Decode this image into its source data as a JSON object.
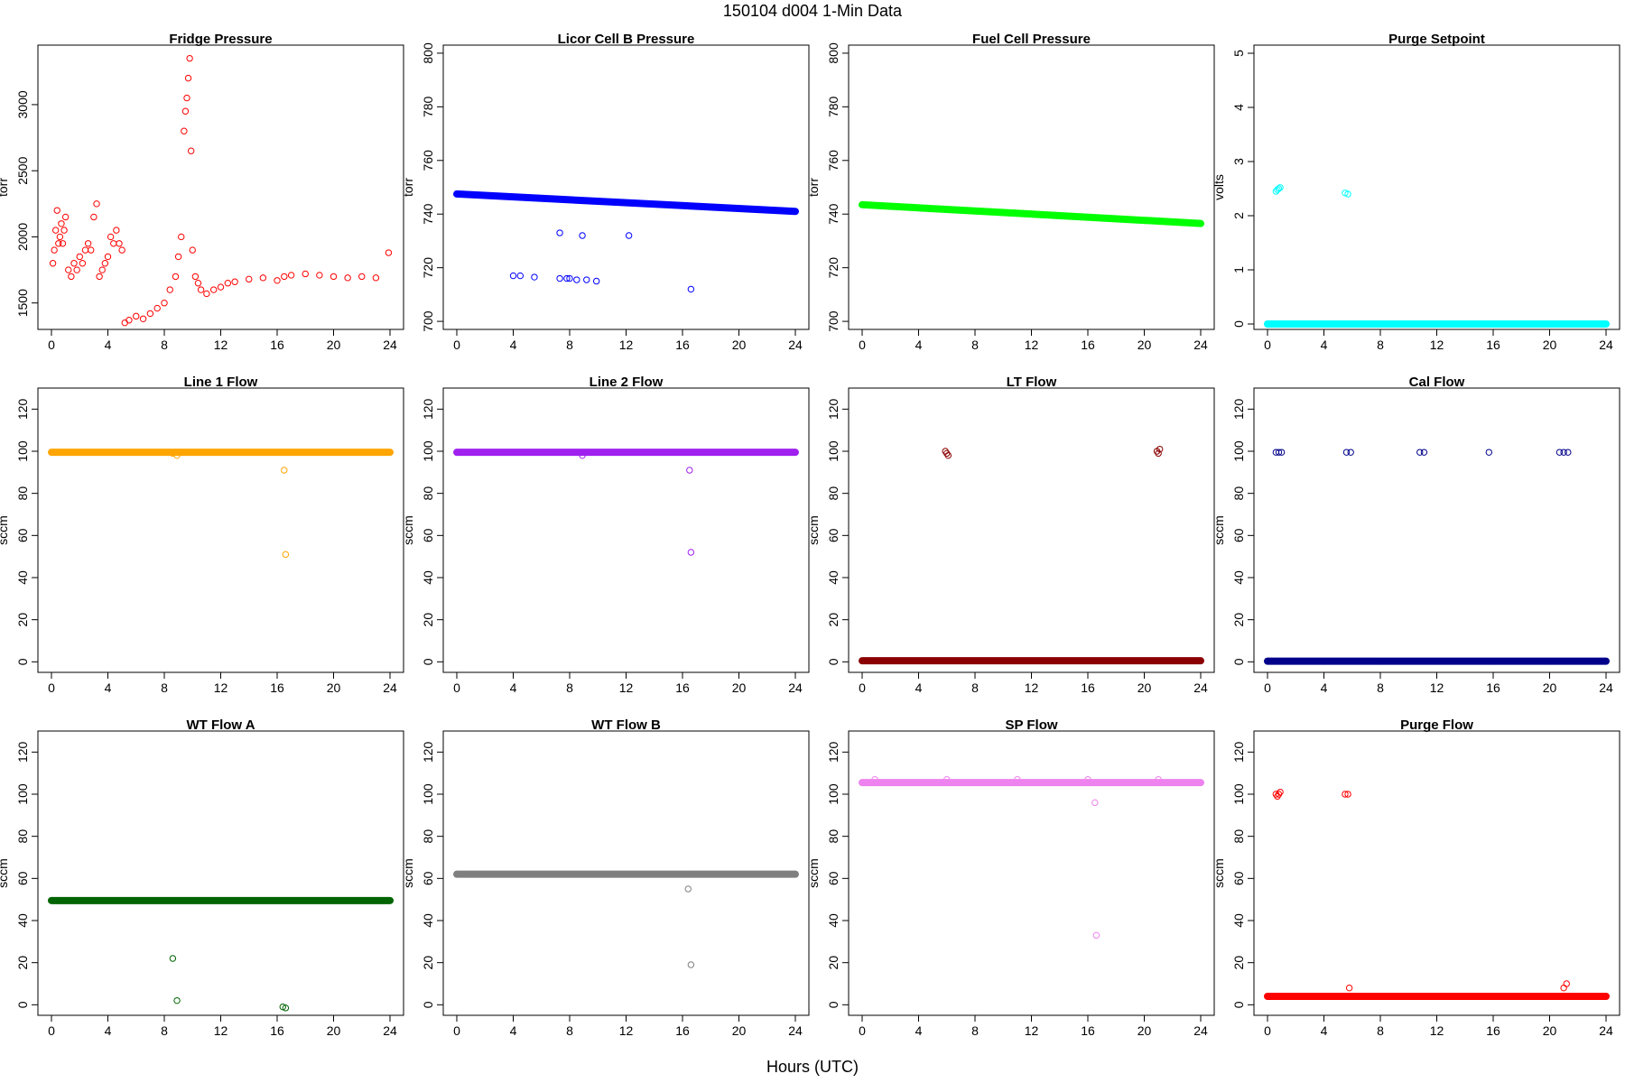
{
  "figure": {
    "suptitle": "150104   d004   1-Min Data",
    "xlabel": "Hours (UTC)"
  },
  "chart_data": [
    {
      "type": "scatter",
      "title": "Fridge Pressure",
      "ylabel": "torr",
      "color": "#ff0000",
      "xlim": [
        0,
        24
      ],
      "ylim": [
        1300,
        3450
      ],
      "yticks": [
        1500,
        2000,
        2500,
        3000
      ],
      "xticks": [
        0,
        4,
        8,
        12,
        16,
        20,
        24
      ],
      "points": [
        [
          0.1,
          1800
        ],
        [
          0.2,
          1900
        ],
        [
          0.3,
          2050
        ],
        [
          0.4,
          2200
        ],
        [
          0.5,
          1950
        ],
        [
          0.6,
          2000
        ],
        [
          0.7,
          2100
        ],
        [
          0.8,
          1950
        ],
        [
          0.9,
          2050
        ],
        [
          1.0,
          2150
        ],
        [
          1.2,
          1750
        ],
        [
          1.4,
          1700
        ],
        [
          1.6,
          1800
        ],
        [
          1.8,
          1750
        ],
        [
          2.0,
          1850
        ],
        [
          2.2,
          1800
        ],
        [
          2.4,
          1900
        ],
        [
          2.6,
          1950
        ],
        [
          2.8,
          1900
        ],
        [
          3.0,
          2150
        ],
        [
          3.2,
          2250
        ],
        [
          3.4,
          1700
        ],
        [
          3.6,
          1750
        ],
        [
          3.8,
          1800
        ],
        [
          4.0,
          1850
        ],
        [
          4.2,
          2000
        ],
        [
          4.4,
          1950
        ],
        [
          4.6,
          2050
        ],
        [
          4.8,
          1950
        ],
        [
          5.0,
          1900
        ],
        [
          5.2,
          1350
        ],
        [
          5.5,
          1370
        ],
        [
          6.0,
          1400
        ],
        [
          6.5,
          1380
        ],
        [
          7.0,
          1420
        ],
        [
          7.5,
          1460
        ],
        [
          8.0,
          1500
        ],
        [
          8.4,
          1600
        ],
        [
          8.8,
          1700
        ],
        [
          9.0,
          1850
        ],
        [
          9.2,
          2000
        ],
        [
          9.4,
          2800
        ],
        [
          9.5,
          2950
        ],
        [
          9.6,
          3050
        ],
        [
          9.7,
          3200
        ],
        [
          9.8,
          3350
        ],
        [
          9.9,
          2650
        ],
        [
          10.0,
          1900
        ],
        [
          10.2,
          1700
        ],
        [
          10.4,
          1650
        ],
        [
          10.6,
          1600
        ],
        [
          11.0,
          1570
        ],
        [
          11.5,
          1600
        ],
        [
          12.0,
          1620
        ],
        [
          12.5,
          1650
        ],
        [
          13.0,
          1660
        ],
        [
          14.0,
          1680
        ],
        [
          15.0,
          1690
        ],
        [
          16.0,
          1670
        ],
        [
          16.5,
          1700
        ],
        [
          17.0,
          1710
        ],
        [
          18.0,
          1720
        ],
        [
          19.0,
          1710
        ],
        [
          20.0,
          1700
        ],
        [
          21.0,
          1690
        ],
        [
          22.0,
          1700
        ],
        [
          23.0,
          1690
        ],
        [
          23.9,
          1880
        ]
      ]
    },
    {
      "type": "scatter",
      "title": "Licor Cell B Pressure",
      "ylabel": "torr",
      "color": "#0000ff",
      "xlim": [
        0,
        24
      ],
      "ylim": [
        697,
        803
      ],
      "yticks": [
        700,
        720,
        740,
        760,
        780,
        800
      ],
      "xticks": [
        0,
        4,
        8,
        12,
        16,
        20,
        24
      ],
      "line": [
        [
          0,
          747.5
        ],
        [
          24,
          741
        ]
      ],
      "points": [
        [
          4.0,
          717
        ],
        [
          4.5,
          717
        ],
        [
          5.5,
          716.5
        ],
        [
          7.3,
          733
        ],
        [
          7.3,
          716
        ],
        [
          7.8,
          716
        ],
        [
          8.0,
          716
        ],
        [
          8.5,
          715.5
        ],
        [
          8.9,
          732
        ],
        [
          9.2,
          715.5
        ],
        [
          9.9,
          715
        ],
        [
          12.2,
          732
        ],
        [
          16.6,
          712
        ]
      ]
    },
    {
      "type": "scatter",
      "title": "Fuel Cell Pressure",
      "ylabel": "torr",
      "color": "#00ff00",
      "xlim": [
        0,
        24
      ],
      "ylim": [
        697,
        803
      ],
      "yticks": [
        700,
        720,
        740,
        760,
        780,
        800
      ],
      "xticks": [
        0,
        4,
        8,
        12,
        16,
        20,
        24
      ],
      "line": [
        [
          0,
          743.5
        ],
        [
          24,
          736.5
        ]
      ],
      "points": []
    },
    {
      "type": "scatter",
      "title": "Purge Setpoint",
      "ylabel": "volts",
      "color": "#00ffff",
      "xlim": [
        0,
        24
      ],
      "ylim": [
        -0.1,
        5.15
      ],
      "yticks": [
        0,
        1,
        2,
        3,
        4,
        5
      ],
      "xticks": [
        0,
        4,
        8,
        12,
        16,
        20,
        24
      ],
      "line": [
        [
          0,
          0
        ],
        [
          24,
          0
        ]
      ],
      "points": [
        [
          0.6,
          2.45
        ],
        [
          0.7,
          2.48
        ],
        [
          0.8,
          2.5
        ],
        [
          0.9,
          2.52
        ],
        [
          5.5,
          2.42
        ],
        [
          5.7,
          2.4
        ]
      ]
    },
    {
      "type": "scatter",
      "title": "Line 1 Flow",
      "ylabel": "sccm",
      "color": "#ffa500",
      "xlim": [
        0,
        24
      ],
      "ylim": [
        -5,
        130
      ],
      "yticks": [
        0,
        20,
        40,
        60,
        80,
        100,
        120
      ],
      "xticks": [
        0,
        4,
        8,
        12,
        16,
        20,
        24
      ],
      "line": [
        [
          0,
          99.5
        ],
        [
          24,
          99.5
        ]
      ],
      "points": [
        [
          8.6,
          99
        ],
        [
          8.9,
          98
        ],
        [
          16.5,
          91
        ],
        [
          16.6,
          51
        ]
      ]
    },
    {
      "type": "scatter",
      "title": "Line 2 Flow",
      "ylabel": "sccm",
      "color": "#a020f0",
      "xlim": [
        0,
        24
      ],
      "ylim": [
        -5,
        130
      ],
      "yticks": [
        0,
        20,
        40,
        60,
        80,
        100,
        120
      ],
      "xticks": [
        0,
        4,
        8,
        12,
        16,
        20,
        24
      ],
      "line": [
        [
          0,
          99.5
        ],
        [
          24,
          99.5
        ]
      ],
      "points": [
        [
          8.9,
          98
        ],
        [
          16.5,
          91
        ],
        [
          16.6,
          52
        ]
      ]
    },
    {
      "type": "scatter",
      "title": "LT Flow",
      "ylabel": "sccm",
      "color": "#8b0000",
      "xlim": [
        0,
        24
      ],
      "ylim": [
        -5,
        130
      ],
      "yticks": [
        0,
        20,
        40,
        60,
        80,
        100,
        120
      ],
      "xticks": [
        0,
        4,
        8,
        12,
        16,
        20,
        24
      ],
      "line": [
        [
          0,
          0.5
        ],
        [
          24,
          0.5
        ]
      ],
      "points": [
        [
          5.9,
          100
        ],
        [
          6.0,
          99
        ],
        [
          6.1,
          98
        ],
        [
          20.9,
          100
        ],
        [
          21.0,
          99
        ],
        [
          21.1,
          101
        ]
      ]
    },
    {
      "type": "scatter",
      "title": "Cal Flow",
      "ylabel": "sccm",
      "color": "#00008b",
      "xlim": [
        0,
        24
      ],
      "ylim": [
        -5,
        130
      ],
      "yticks": [
        0,
        20,
        40,
        60,
        80,
        100,
        120
      ],
      "xticks": [
        0,
        4,
        8,
        12,
        16,
        20,
        24
      ],
      "line": [
        [
          0,
          0.3
        ],
        [
          24,
          0.3
        ]
      ],
      "points": [
        [
          0.6,
          99.5
        ],
        [
          0.8,
          99.5
        ],
        [
          1.0,
          99.5
        ],
        [
          5.6,
          99.5
        ],
        [
          5.9,
          99.5
        ],
        [
          10.8,
          99.5
        ],
        [
          11.1,
          99.5
        ],
        [
          15.7,
          99.5
        ],
        [
          20.7,
          99.5
        ],
        [
          21.0,
          99.5
        ],
        [
          21.3,
          99.5
        ]
      ]
    },
    {
      "type": "scatter",
      "title": "WT Flow A",
      "ylabel": "sccm",
      "color": "#006400",
      "xlim": [
        0,
        24
      ],
      "ylim": [
        -5,
        130
      ],
      "yticks": [
        0,
        20,
        40,
        60,
        80,
        100,
        120
      ],
      "xticks": [
        0,
        4,
        8,
        12,
        16,
        20,
        24
      ],
      "line": [
        [
          0,
          49.5
        ],
        [
          24,
          49.5
        ]
      ],
      "points": [
        [
          8.6,
          22
        ],
        [
          8.9,
          2
        ],
        [
          16.4,
          -1
        ],
        [
          16.6,
          -1.5
        ]
      ]
    },
    {
      "type": "scatter",
      "title": "WT Flow B",
      "ylabel": "sccm",
      "color": "#7f7f7f",
      "xlim": [
        0,
        24
      ],
      "ylim": [
        -5,
        130
      ],
      "yticks": [
        0,
        20,
        40,
        60,
        80,
        100,
        120
      ],
      "xticks": [
        0,
        4,
        8,
        12,
        16,
        20,
        24
      ],
      "line": [
        [
          0,
          62
        ],
        [
          24,
          62
        ]
      ],
      "points": [
        [
          16.4,
          55
        ],
        [
          16.6,
          19
        ]
      ]
    },
    {
      "type": "scatter",
      "title": "SP Flow",
      "ylabel": "sccm",
      "color": "#ee82ee",
      "xlim": [
        0,
        24
      ],
      "ylim": [
        -5,
        130
      ],
      "yticks": [
        0,
        20,
        40,
        60,
        80,
        100,
        120
      ],
      "xticks": [
        0,
        4,
        8,
        12,
        16,
        20,
        24
      ],
      "line": [
        [
          0,
          105.5
        ],
        [
          24,
          105.5
        ]
      ],
      "points": [
        [
          0.9,
          107
        ],
        [
          6.0,
          107
        ],
        [
          11.0,
          107
        ],
        [
          16.0,
          107
        ],
        [
          21.0,
          107
        ],
        [
          16.5,
          96
        ],
        [
          16.6,
          33
        ]
      ]
    },
    {
      "type": "scatter",
      "title": "Purge Flow",
      "ylabel": "sccm",
      "color": "#ff0000",
      "xlim": [
        0,
        24
      ],
      "ylim": [
        -5,
        130
      ],
      "yticks": [
        0,
        20,
        40,
        60,
        80,
        100,
        120
      ],
      "xticks": [
        0,
        4,
        8,
        12,
        16,
        20,
        24
      ],
      "line": [
        [
          0,
          4
        ],
        [
          24,
          4
        ]
      ],
      "points": [
        [
          0.6,
          100
        ],
        [
          0.7,
          99
        ],
        [
          0.8,
          100
        ],
        [
          0.9,
          101
        ],
        [
          5.5,
          100
        ],
        [
          5.7,
          100
        ],
        [
          5.8,
          8
        ],
        [
          21.0,
          8
        ],
        [
          21.2,
          10
        ]
      ]
    }
  ]
}
